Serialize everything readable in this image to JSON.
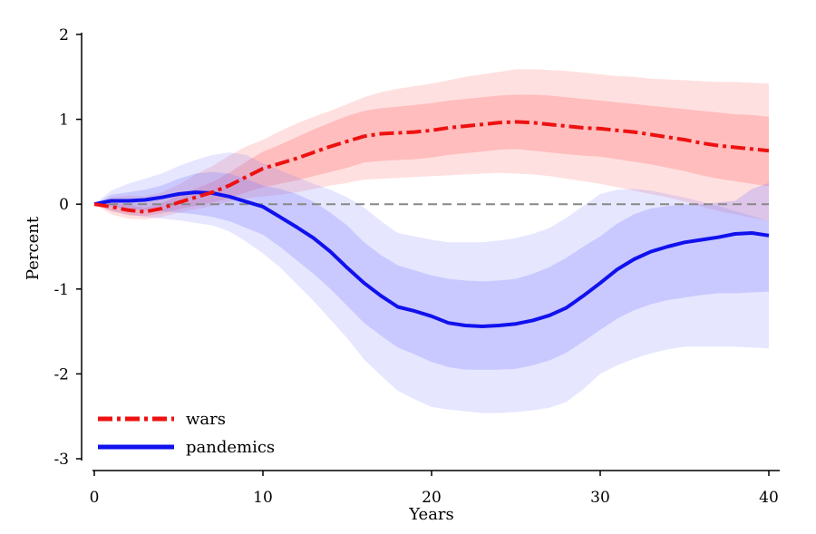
{
  "chart_data": {
    "type": "line",
    "title": "",
    "xlabel": "Years",
    "ylabel": "Percent",
    "xlim": [
      0,
      40
    ],
    "ylim": [
      -3,
      2
    ],
    "xticks": [
      0,
      10,
      20,
      30,
      40
    ],
    "yticks": [
      -3,
      -2,
      -1,
      0,
      1,
      2
    ],
    "zero_line": {
      "value": 0,
      "style": "dashed",
      "color": "#888888"
    },
    "legend": {
      "placement": "bottom-left"
    },
    "series": [
      {
        "name": "wars",
        "color": "#ee1111",
        "style": "dash-dot",
        "band_color": "#ff6666",
        "x": [
          0,
          1,
          2,
          3,
          4,
          5,
          6,
          7,
          8,
          9,
          10,
          11,
          12,
          13,
          14,
          15,
          16,
          17,
          18,
          19,
          20,
          21,
          22,
          23,
          24,
          25,
          26,
          27,
          28,
          29,
          30,
          31,
          32,
          33,
          34,
          35,
          36,
          37,
          38,
          39,
          40
        ],
        "values": [
          0,
          -0.03,
          -0.07,
          -0.09,
          -0.05,
          0.02,
          0.08,
          0.14,
          0.22,
          0.32,
          0.42,
          0.48,
          0.54,
          0.61,
          0.68,
          0.74,
          0.8,
          0.83,
          0.84,
          0.85,
          0.87,
          0.9,
          0.92,
          0.94,
          0.96,
          0.97,
          0.96,
          0.94,
          0.92,
          0.9,
          0.89,
          0.87,
          0.85,
          0.82,
          0.79,
          0.76,
          0.72,
          0.69,
          0.67,
          0.65,
          0.63
        ],
        "inner_lo": [
          0,
          -0.08,
          -0.13,
          -0.14,
          -0.11,
          -0.06,
          -0.02,
          0.02,
          0.07,
          0.14,
          0.2,
          0.24,
          0.28,
          0.33,
          0.38,
          0.43,
          0.49,
          0.51,
          0.52,
          0.53,
          0.55,
          0.58,
          0.6,
          0.62,
          0.64,
          0.65,
          0.63,
          0.61,
          0.59,
          0.57,
          0.56,
          0.53,
          0.5,
          0.47,
          0.43,
          0.39,
          0.34,
          0.3,
          0.27,
          0.24,
          0.21
        ],
        "inner_hi": [
          0,
          0.02,
          -0.01,
          -0.04,
          0.01,
          0.1,
          0.18,
          0.26,
          0.37,
          0.5,
          0.62,
          0.7,
          0.79,
          0.88,
          0.96,
          1.04,
          1.1,
          1.13,
          1.15,
          1.17,
          1.19,
          1.22,
          1.24,
          1.26,
          1.28,
          1.29,
          1.29,
          1.28,
          1.26,
          1.24,
          1.22,
          1.2,
          1.18,
          1.16,
          1.14,
          1.12,
          1.1,
          1.08,
          1.06,
          1.05,
          1.03
        ],
        "outer_lo": [
          0,
          -0.12,
          -0.17,
          -0.18,
          -0.15,
          -0.1,
          -0.06,
          -0.02,
          0.03,
          0.07,
          0.09,
          0.11,
          0.14,
          0.18,
          0.22,
          0.25,
          0.29,
          0.3,
          0.31,
          0.32,
          0.33,
          0.34,
          0.35,
          0.36,
          0.37,
          0.36,
          0.35,
          0.33,
          0.3,
          0.27,
          0.24,
          0.2,
          0.16,
          0.12,
          0.08,
          0.03,
          -0.03,
          -0.08,
          -0.12,
          -0.16,
          -0.2
        ],
        "outer_hi": [
          0,
          0.08,
          0.1,
          0.09,
          0.14,
          0.23,
          0.35,
          0.45,
          0.57,
          0.68,
          0.76,
          0.86,
          0.95,
          1.03,
          1.1,
          1.18,
          1.26,
          1.32,
          1.36,
          1.39,
          1.42,
          1.46,
          1.5,
          1.53,
          1.56,
          1.59,
          1.59,
          1.58,
          1.57,
          1.55,
          1.53,
          1.51,
          1.5,
          1.48,
          1.47,
          1.46,
          1.45,
          1.44,
          1.44,
          1.43,
          1.42
        ]
      },
      {
        "name": "pandemics",
        "color": "#1111ee",
        "style": "solid",
        "band_color": "#7777ff",
        "x": [
          0,
          1,
          2,
          3,
          4,
          5,
          6,
          7,
          8,
          9,
          10,
          11,
          12,
          13,
          14,
          15,
          16,
          17,
          18,
          19,
          20,
          21,
          22,
          23,
          24,
          25,
          26,
          27,
          28,
          29,
          30,
          31,
          32,
          33,
          34,
          35,
          36,
          37,
          38,
          39,
          40
        ],
        "values": [
          0,
          0.04,
          0.04,
          0.05,
          0.08,
          0.12,
          0.14,
          0.13,
          0.09,
          0.03,
          -0.03,
          -0.15,
          -0.27,
          -0.4,
          -0.56,
          -0.75,
          -0.93,
          -1.08,
          -1.21,
          -1.26,
          -1.32,
          -1.4,
          -1.43,
          -1.44,
          -1.43,
          -1.41,
          -1.37,
          -1.31,
          -1.22,
          -1.08,
          -0.93,
          -0.77,
          -0.65,
          -0.56,
          -0.5,
          -0.45,
          -0.42,
          -0.39,
          -0.35,
          -0.34,
          -0.37
        ],
        "inner_lo": [
          0,
          -0.03,
          -0.06,
          -0.07,
          -0.08,
          -0.1,
          -0.12,
          -0.15,
          -0.2,
          -0.28,
          -0.36,
          -0.5,
          -0.66,
          -0.82,
          -1.0,
          -1.2,
          -1.4,
          -1.55,
          -1.69,
          -1.77,
          -1.86,
          -1.92,
          -1.95,
          -1.95,
          -1.95,
          -1.94,
          -1.9,
          -1.84,
          -1.75,
          -1.62,
          -1.48,
          -1.35,
          -1.25,
          -1.18,
          -1.13,
          -1.1,
          -1.07,
          -1.05,
          -1.05,
          -1.04,
          -1.03
        ],
        "inner_hi": [
          0,
          0.11,
          0.14,
          0.17,
          0.22,
          0.3,
          0.36,
          0.38,
          0.36,
          0.3,
          0.22,
          0.18,
          0.12,
          0.03,
          -0.1,
          -0.25,
          -0.45,
          -0.6,
          -0.72,
          -0.78,
          -0.84,
          -0.88,
          -0.9,
          -0.91,
          -0.9,
          -0.88,
          -0.82,
          -0.74,
          -0.63,
          -0.5,
          -0.38,
          -0.23,
          -0.12,
          -0.05,
          -0.02,
          0.0,
          0.0,
          0.02,
          0.04,
          0.18,
          0.25
        ],
        "outer_lo": [
          0,
          -0.08,
          -0.12,
          -0.15,
          -0.17,
          -0.19,
          -0.22,
          -0.25,
          -0.32,
          -0.44,
          -0.58,
          -0.74,
          -0.94,
          -1.14,
          -1.36,
          -1.58,
          -1.83,
          -2.02,
          -2.2,
          -2.3,
          -2.39,
          -2.42,
          -2.44,
          -2.46,
          -2.46,
          -2.45,
          -2.43,
          -2.4,
          -2.33,
          -2.18,
          -2.0,
          -1.9,
          -1.82,
          -1.76,
          -1.71,
          -1.68,
          -1.68,
          -1.68,
          -1.68,
          -1.69,
          -1.7
        ],
        "outer_hi": [
          0,
          0.16,
          0.24,
          0.3,
          0.36,
          0.45,
          0.52,
          0.58,
          0.61,
          0.58,
          0.48,
          0.4,
          0.32,
          0.24,
          0.17,
          0.08,
          -0.04,
          -0.2,
          -0.34,
          -0.38,
          -0.42,
          -0.45,
          -0.45,
          -0.45,
          -0.43,
          -0.4,
          -0.35,
          -0.28,
          -0.16,
          -0.02,
          0.12,
          0.17,
          0.18,
          0.16,
          0.12,
          0.08,
          0.03,
          -0.02,
          -0.08,
          -0.14,
          -0.2
        ]
      }
    ]
  }
}
